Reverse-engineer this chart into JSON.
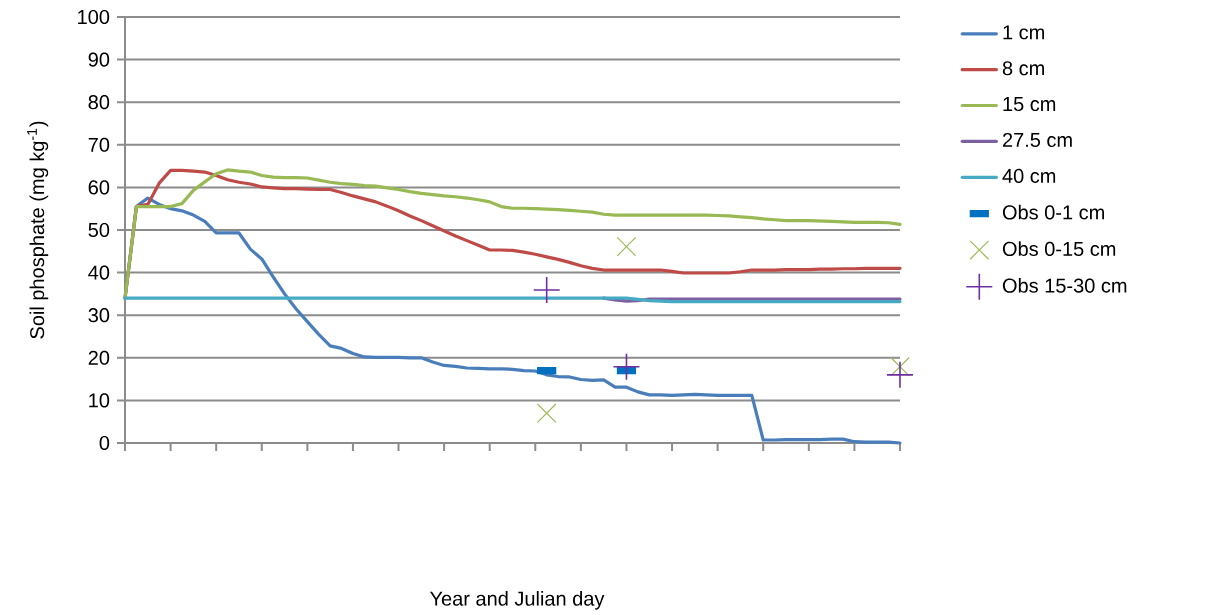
{
  "chart_data": {
    "type": "line",
    "annotations": [
      "Year and Julian day"
    ],
    "ylabel": "Soil phosphate (mg kg$^{-1}$)",
    "categories": [
      null,
      null,
      null,
      null,
      null,
      null,
      null,
      null,
      null,
      null,
      null,
      null,
      null,
      null,
      null,
      null,
      null,
      null,
      null,
      null,
      null,
      null,
      null,
      null,
      null,
      null,
      null,
      null,
      null,
      null,
      null,
      null,
      null,
      null,
      null,
      null,
      null,
      null,
      null,
      null,
      null,
      null,
      null,
      null,
      null,
      null,
      null,
      null,
      null,
      null,
      null,
      null,
      null,
      null,
      null,
      null,
      null,
      null,
      null,
      null,
      null,
      null,
      null,
      null,
      null,
      null,
      null,
      null,
      null
    ],
    "ylim": [
      0,
      100
    ],
    "yticks": [
      0,
      10,
      20,
      30,
      40,
      50,
      60,
      70,
      80,
      90,
      100
    ],
    "grid": "y",
    "legend": "right",
    "series": [
      {
        "name": "1 cm",
        "marker": "none",
        "color": "#4a7ebb",
        "values": [
          34,
          55.5,
          57.5,
          56,
          55,
          54.5,
          53.5,
          52,
          49.3,
          49.3,
          49.3,
          45.5,
          43.2,
          39,
          35,
          31.5,
          28.5,
          25.5,
          22.8,
          22.2,
          21,
          20.2,
          20.1,
          20.1,
          20.1,
          20.0,
          20.0,
          19.0,
          18.2,
          18.0,
          17.6,
          17.5,
          17.4,
          17.4,
          17.3,
          17.0,
          16.9,
          16.0,
          15.6,
          15.5,
          14.9,
          14.7,
          14.8,
          13.1,
          13.1,
          12.0,
          11.3,
          11.3,
          11.2,
          11.3,
          11.4,
          11.3,
          11.2,
          11.2,
          11.2,
          11.2,
          0.7,
          0.7,
          0.8,
          0.8,
          0.8,
          0.8,
          0.9,
          0.9,
          0.3,
          0.2,
          0.2,
          0.2,
          0
        ]
      },
      {
        "name": "8 cm",
        "marker": "none",
        "color": "#be4b48",
        "values": [
          34,
          55.5,
          56,
          61,
          64,
          64,
          63.8,
          63.6,
          62.8,
          61.8,
          61.2,
          60.8,
          60.1,
          59.9,
          59.7,
          59.7,
          59.6,
          59.5,
          59.5,
          58.8,
          58.0,
          57.3,
          56.6,
          55.6,
          54.5,
          53.3,
          52.2,
          51.0,
          49.8,
          48.6,
          47.5,
          46.4,
          45.3,
          45.3,
          45.2,
          44.8,
          44.3,
          43.7,
          43.1,
          42.4,
          41.6,
          41.0,
          40.6,
          40.6,
          40.6,
          40.6,
          40.6,
          40.6,
          40.3,
          39.9,
          39.9,
          39.9,
          39.9,
          39.9,
          40.2,
          40.6,
          40.6,
          40.6,
          40.7,
          40.7,
          40.7,
          40.8,
          40.8,
          40.9,
          40.9,
          41.0,
          41.0,
          41.0,
          41.0
        ]
      },
      {
        "name": "15 cm",
        "marker": "none",
        "color": "#98b954",
        "values": [
          34,
          55.5,
          55.5,
          55.5,
          55.5,
          56.2,
          59.3,
          61.3,
          63.2,
          64.1,
          63.8,
          63.6,
          62.8,
          62.4,
          62.3,
          62.3,
          62.2,
          61.7,
          61.2,
          60.9,
          60.7,
          60.4,
          60.3,
          59.9,
          59.5,
          59.0,
          58.6,
          58.3,
          58.0,
          57.8,
          57.5,
          57.1,
          56.6,
          55.5,
          55.1,
          55.1,
          55.0,
          54.9,
          54.8,
          54.6,
          54.4,
          54.2,
          53.7,
          53.5,
          53.5,
          53.5,
          53.5,
          53.5,
          53.5,
          53.5,
          53.5,
          53.5,
          53.4,
          53.3,
          53.1,
          52.9,
          52.6,
          52.4,
          52.2,
          52.2,
          52.2,
          52.1,
          52.0,
          51.9,
          51.8,
          51.8,
          51.8,
          51.7,
          51.3
        ]
      },
      {
        "name": "27.5 cm",
        "marker": "none",
        "color": "#7d60a0",
        "values": [
          null,
          null,
          null,
          null,
          null,
          null,
          null,
          null,
          null,
          null,
          null,
          null,
          null,
          null,
          null,
          null,
          null,
          null,
          null,
          null,
          null,
          null,
          null,
          null,
          null,
          null,
          null,
          null,
          null,
          null,
          null,
          null,
          null,
          null,
          null,
          null,
          null,
          null,
          null,
          null,
          null,
          null,
          34,
          33.6,
          33.3,
          33.4,
          33.8,
          33.8,
          33.8,
          33.8,
          33.8,
          33.8,
          33.8,
          33.8,
          33.8,
          33.8,
          33.8,
          33.8,
          33.8,
          33.8,
          33.8,
          33.8,
          33.8,
          33.8,
          33.8,
          33.8,
          33.8,
          33.8,
          33.8
        ]
      },
      {
        "name": "40 cm",
        "marker": "none",
        "color": "#46aac5",
        "values": [
          34,
          34,
          34,
          34,
          34,
          34,
          34,
          34,
          34,
          34,
          34,
          34,
          34,
          34,
          34,
          34,
          34,
          34,
          34,
          34,
          34,
          34,
          34,
          34,
          34,
          34,
          34,
          34,
          34,
          34,
          34,
          34,
          34,
          34,
          34,
          34,
          34,
          34,
          34,
          34,
          34,
          34,
          34,
          34,
          34,
          33.7,
          33.4,
          33.3,
          33.2,
          33.2,
          33.2,
          33.2,
          33.2,
          33.2,
          33.2,
          33.2,
          33.2,
          33.2,
          33.2,
          33.2,
          33.2,
          33.2,
          33.2,
          33.2,
          33.2,
          33.2,
          33.2,
          33.2,
          33.2
        ]
      },
      {
        "name": "Obs 0-1 cm",
        "type": "scatter",
        "marker": "square",
        "color": "#0070c0",
        "values": [
          null,
          null,
          null,
          null,
          null,
          null,
          null,
          null,
          null,
          null,
          null,
          null,
          null,
          null,
          null,
          null,
          null,
          null,
          null,
          null,
          null,
          null,
          null,
          null,
          null,
          null,
          null,
          null,
          null,
          null,
          null,
          null,
          null,
          null,
          null,
          null,
          null,
          17.0,
          null,
          null,
          null,
          null,
          null,
          null,
          17.0,
          null,
          null,
          null,
          null,
          null,
          null,
          null,
          null,
          null,
          null,
          null,
          null,
          null,
          null,
          null,
          null,
          null,
          null,
          null,
          null,
          null,
          null,
          null,
          null
        ]
      },
      {
        "name": "Obs 0-15 cm",
        "type": "scatter",
        "marker": "cross",
        "color": "#9bbb59",
        "values": [
          null,
          null,
          null,
          null,
          null,
          null,
          null,
          null,
          null,
          null,
          null,
          null,
          null,
          null,
          null,
          null,
          null,
          null,
          null,
          null,
          null,
          null,
          null,
          null,
          null,
          null,
          null,
          null,
          null,
          null,
          null,
          null,
          null,
          null,
          null,
          null,
          null,
          7.0,
          null,
          null,
          null,
          null,
          null,
          null,
          46.1,
          null,
          null,
          null,
          null,
          null,
          null,
          null,
          null,
          null,
          null,
          null,
          null,
          null,
          null,
          null,
          null,
          null,
          null,
          null,
          null,
          null,
          null,
          null,
          17.9
        ]
      },
      {
        "name": "Obs 15-30 cm",
        "type": "scatter",
        "marker": "cross",
        "color": "#7030a0",
        "values": [
          null,
          null,
          null,
          null,
          null,
          null,
          null,
          null,
          null,
          null,
          null,
          null,
          null,
          null,
          null,
          null,
          null,
          null,
          null,
          null,
          null,
          null,
          null,
          null,
          null,
          null,
          null,
          null,
          null,
          null,
          null,
          null,
          null,
          null,
          null,
          null,
          null,
          35.9,
          null,
          null,
          null,
          null,
          null,
          null,
          17.9,
          null,
          null,
          null,
          null,
          null,
          null,
          null,
          null,
          null,
          null,
          null,
          null,
          null,
          null,
          null,
          null,
          null,
          null,
          null,
          null,
          null,
          null,
          null,
          16.0
        ]
      }
    ]
  }
}
